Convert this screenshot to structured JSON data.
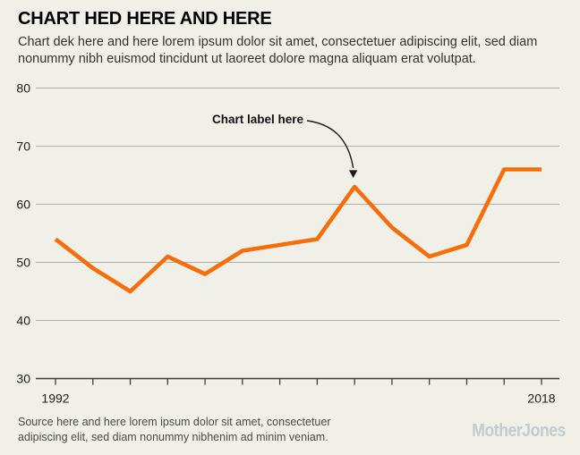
{
  "header": {
    "title": "CHART HED HERE AND HERE",
    "dek": "Chart dek here and here lorem ipsum dolor sit amet, consectetuer adipiscing elit, sed diam nonummy nibh euismod tincidunt ut laoreet dolore magna aliquam erat volutpat."
  },
  "chart_data": {
    "type": "line",
    "x": [
      1992,
      1994,
      1996,
      1998,
      2000,
      2002,
      2004,
      2006,
      2008,
      2010,
      2012,
      2014,
      2016,
      2018
    ],
    "values": [
      54,
      49,
      45,
      51,
      48,
      52,
      53,
      54,
      63,
      56,
      51,
      53,
      66,
      66
    ],
    "title": "",
    "xlabel": "",
    "ylabel": "",
    "ylim": [
      30,
      80
    ],
    "yticks": [
      30,
      40,
      50,
      60,
      70,
      80
    ],
    "xtick_labels": [
      "1992",
      "2018"
    ],
    "grid": true,
    "legend": "none",
    "line_color": "#f56e0a",
    "grid_color": "#b1b1ab",
    "axis_color": "#3c3c38",
    "label_color": "#1c1c1a",
    "annotation": {
      "label": "Chart label here",
      "target_x": 2008,
      "target_y": 63
    }
  },
  "footer": {
    "source": "Source here and here lorem ipsum dolor sit amet, consectetuer adipiscing elit, sed diam nonummy nibhenim ad minim veniam.",
    "logo": "MotherJones"
  }
}
